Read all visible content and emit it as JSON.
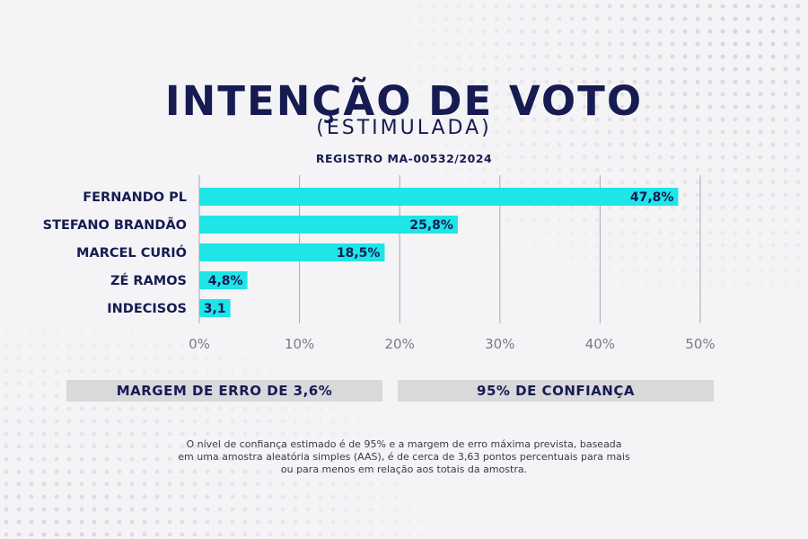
{
  "header": {
    "title": "INTENÇÃO DE VOTO",
    "subtitle": "(ESTIMULADA)",
    "registro": "REGISTRO MA-00532/2024"
  },
  "chart_data": {
    "type": "bar",
    "orientation": "horizontal",
    "categories": [
      "FERNANDO PL",
      "STEFANO BRANDÃO",
      "MARCEL CURIÓ",
      "ZÉ RAMOS",
      "INDECISOS"
    ],
    "values": [
      47.8,
      25.8,
      18.5,
      4.8,
      3.1
    ],
    "value_labels": [
      "47,8%",
      "25,8%",
      "18,5%",
      "4,8%",
      "3,1"
    ],
    "xlim": [
      0,
      50
    ],
    "x_ticks": [
      "0%",
      "10%",
      "20%",
      "30%",
      "40%",
      "50%"
    ],
    "grid": true,
    "colors": {
      "bar": "#1ee5e8",
      "text": "#161b52",
      "grid": "#a8a8b0"
    }
  },
  "footer_boxes": {
    "margin": "MARGEM DE ERRO DE 3,6%",
    "confidence": "95% DE CONFIANÇA"
  },
  "note": {
    "line1": "O nível de confiança estimado é de 95% e a margem de erro máxima prevista, baseada",
    "line2": "em uma amostra aleatória simples (AAS), é de cerca de 3,63 pontos percentuais para mais",
    "line3": "ou para menos em relação aos totais da amostra."
  }
}
